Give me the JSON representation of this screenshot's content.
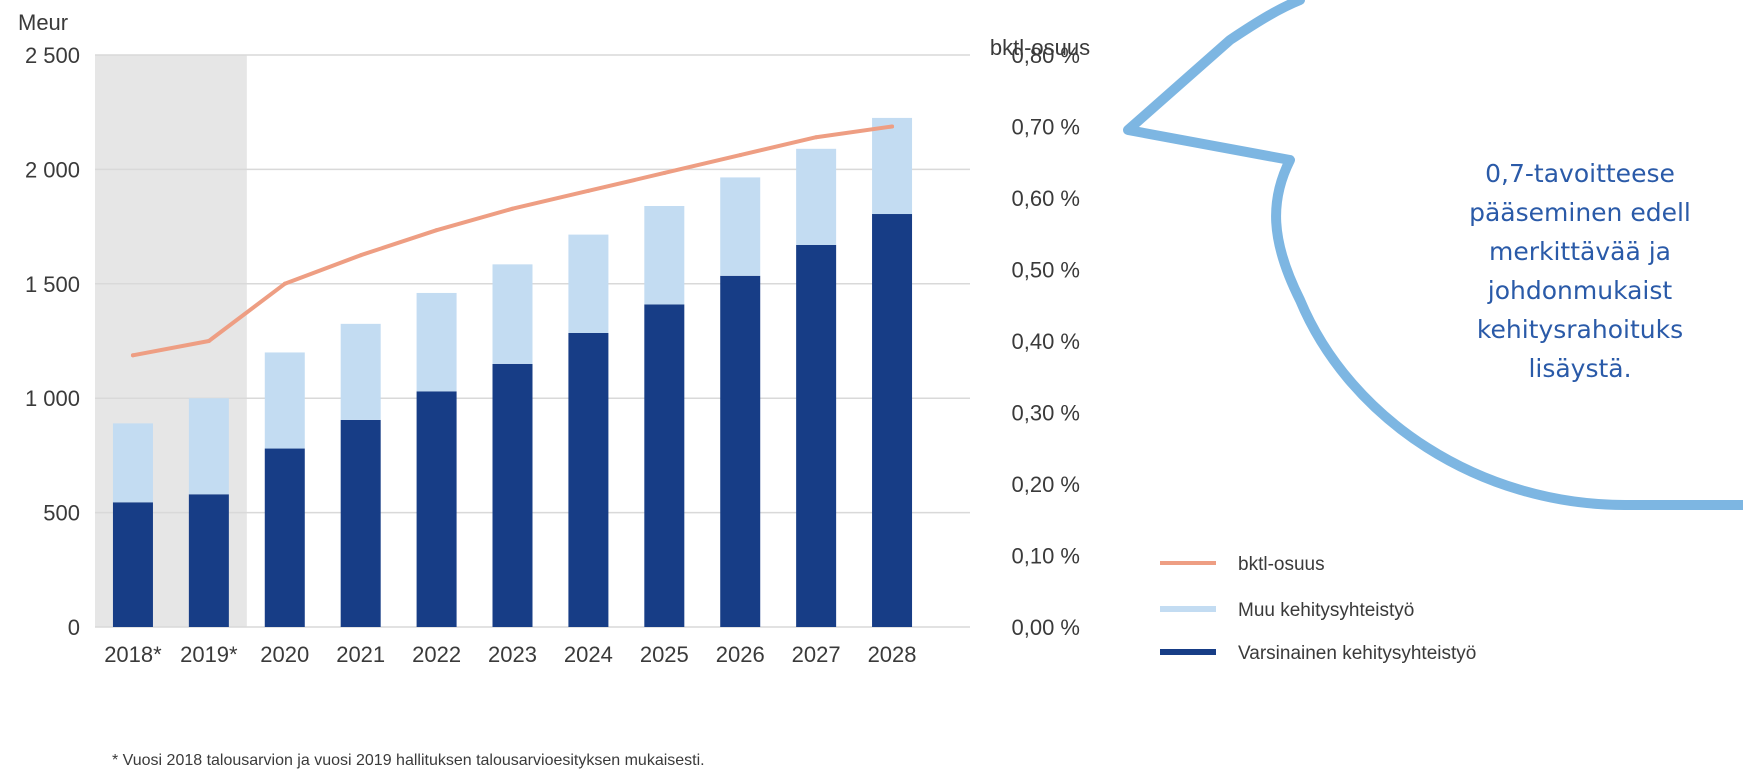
{
  "chart_data": {
    "type": "bar",
    "stacked": true,
    "secondary_line": true,
    "categories": [
      "2018*",
      "2019*",
      "2020",
      "2021",
      "2022",
      "2023",
      "2024",
      "2025",
      "2026",
      "2027",
      "2028"
    ],
    "series": [
      {
        "name": "Varsinainen kehitysyhteistyö",
        "axis": "left",
        "color": "#173d86",
        "values": [
          545,
          580,
          780,
          905,
          1030,
          1150,
          1285,
          1410,
          1535,
          1670,
          1805
        ]
      },
      {
        "name": "Muu kehitysyhteistyö",
        "axis": "left",
        "color": "#c3dcf2",
        "values": [
          345,
          420,
          420,
          420,
          430,
          435,
          430,
          430,
          430,
          420,
          420
        ]
      },
      {
        "name": "bktl-osuus",
        "axis": "right",
        "color": "#ee9e83",
        "values": [
          0.38,
          0.4,
          0.48,
          0.52,
          0.555,
          0.585,
          0.61,
          0.635,
          0.66,
          0.685,
          0.7
        ]
      }
    ],
    "ylabel_left": "Meur",
    "ylabel_right": "bktl-osuus",
    "ylim_left": [
      0,
      2500
    ],
    "ylim_right": [
      0,
      0.8
    ],
    "yticks_left": [
      "0",
      "500",
      "1 000",
      "1 500",
      "2 000",
      "2 500"
    ],
    "yticks_right": [
      "0,00 %",
      "0,10 %",
      "0,20 %",
      "0,30 %",
      "0,40 %",
      "0,50 %",
      "0,60 %",
      "0,70 %",
      "0,80 %"
    ],
    "shaded_categories": [
      "2018*",
      "2019*"
    ],
    "grid": true,
    "legend_position": "right",
    "legend": [
      "bktl-osuus",
      "Muu kehitysyhteistyö",
      "Varsinainen kehitysyhteistyö"
    ],
    "footnote": "* Vuosi 2018 talousarvion ja vuosi 2019 hallituksen talousarvioesityksen mukaisesti."
  },
  "callout": {
    "lines": [
      "0,7-tavoitteese",
      "pääseminen edell",
      "merkittävää ja",
      "johdonmukaist",
      "kehitysrahoituks",
      "lisäystä."
    ]
  },
  "colors": {
    "shade": "#e6e6e6",
    "grid": "#d9d9d9",
    "bubble_stroke": "#7db6e2"
  }
}
